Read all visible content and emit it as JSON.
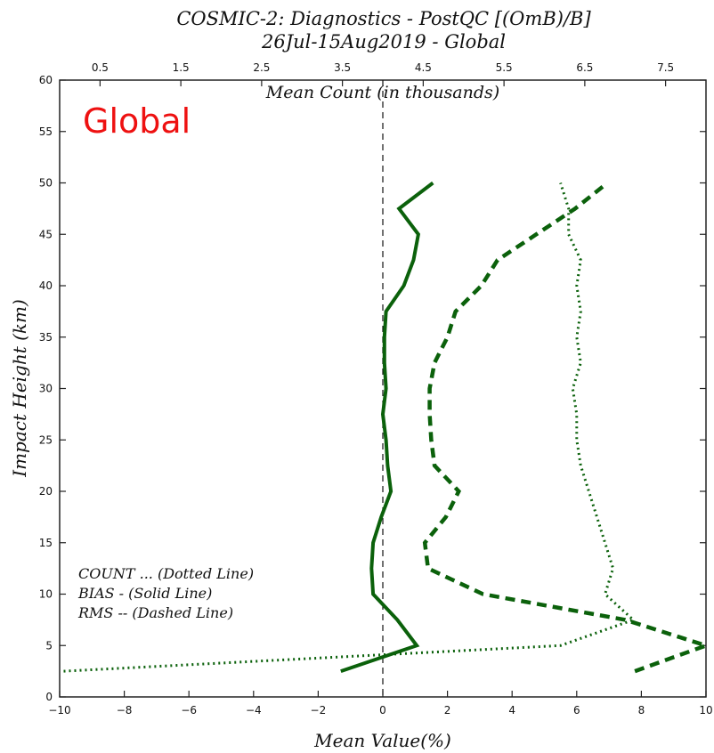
{
  "chart_data": {
    "type": "line",
    "title": "COSMIC-2: Diagnostics - PostQC [(OmB)/B]",
    "subtitle": "26Jul-15Aug2019 - Global",
    "region_label": "Global",
    "xlabel": "Mean Value(%)",
    "ylabel": "Impact Height (km)",
    "top_xlabel": "Mean Count (in thousands)",
    "xlim": [
      -10,
      10
    ],
    "ylim": [
      0,
      60
    ],
    "top_xlim": [
      0,
      8
    ],
    "x_ticks": [
      "−10",
      "−8",
      "−6",
      "−4",
      "−2",
      "0",
      "2",
      "4",
      "6",
      "8",
      "10"
    ],
    "y_ticks": [
      "0",
      "5",
      "10",
      "15",
      "20",
      "25",
      "30",
      "35",
      "40",
      "45",
      "50",
      "55",
      "60"
    ],
    "top_ticks": [
      "0.5",
      "1.5",
      "2.5",
      "3.5",
      "4.5",
      "5.5",
      "6.5",
      "7.5"
    ],
    "legend": [
      "COUNT ... (Dotted Line)",
      "BIAS - (Solid Line)",
      "RMS -- (Dashed Line)"
    ],
    "legend_placement": "lower-left",
    "grid": false,
    "line_color": "#0b610b",
    "series": [
      {
        "key": "bias",
        "axis": "bottom",
        "style": "solid",
        "points": [
          [
            -1.3,
            2.5
          ],
          [
            1.05,
            5
          ],
          [
            0.45,
            7.5
          ],
          [
            -0.3,
            10
          ],
          [
            -0.35,
            12.5
          ],
          [
            -0.3,
            15
          ],
          [
            -0.05,
            17.5
          ],
          [
            0.25,
            20
          ],
          [
            0.15,
            22.5
          ],
          [
            0.1,
            25
          ],
          [
            0.0,
            27.5
          ],
          [
            0.1,
            30
          ],
          [
            0.05,
            32.5
          ],
          [
            0.05,
            35
          ],
          [
            0.1,
            37.5
          ],
          [
            0.65,
            40
          ],
          [
            0.95,
            42.5
          ],
          [
            1.1,
            45
          ],
          [
            0.5,
            47.5
          ],
          [
            1.55,
            50
          ]
        ]
      },
      {
        "key": "rms",
        "axis": "bottom",
        "style": "dashed",
        "points": [
          [
            7.8,
            2.5
          ],
          [
            10.0,
            5
          ],
          [
            7.5,
            7.5
          ],
          [
            3.1,
            10
          ],
          [
            1.4,
            12.5
          ],
          [
            1.3,
            15
          ],
          [
            1.95,
            17.5
          ],
          [
            2.35,
            20
          ],
          [
            1.6,
            22.5
          ],
          [
            1.5,
            25
          ],
          [
            1.45,
            27.5
          ],
          [
            1.45,
            30
          ],
          [
            1.6,
            32.5
          ],
          [
            2.0,
            35
          ],
          [
            2.25,
            37.5
          ],
          [
            3.05,
            40
          ],
          [
            3.55,
            42.5
          ],
          [
            4.75,
            45
          ],
          [
            5.95,
            47.5
          ],
          [
            6.95,
            50
          ]
        ]
      },
      {
        "key": "count",
        "axis": "top",
        "style": "dotted",
        "points": [
          [
            0.05,
            2.5
          ],
          [
            6.2,
            5
          ],
          [
            7.1,
            7.5
          ],
          [
            6.75,
            10
          ],
          [
            6.85,
            12.5
          ],
          [
            6.75,
            15
          ],
          [
            6.65,
            17.5
          ],
          [
            6.55,
            20
          ],
          [
            6.45,
            22.5
          ],
          [
            6.4,
            25
          ],
          [
            6.4,
            27.5
          ],
          [
            6.35,
            30
          ],
          [
            6.45,
            32.5
          ],
          [
            6.4,
            35
          ],
          [
            6.45,
            37.5
          ],
          [
            6.4,
            40
          ],
          [
            6.45,
            42.5
          ],
          [
            6.3,
            45
          ],
          [
            6.3,
            47.5
          ],
          [
            6.2,
            50
          ]
        ]
      }
    ]
  }
}
